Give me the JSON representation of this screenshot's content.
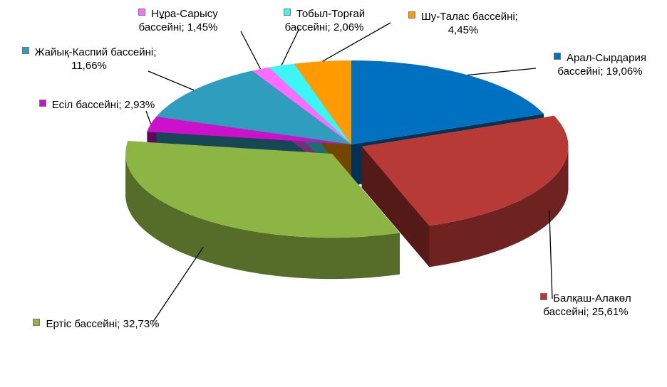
{
  "chart_data": {
    "type": "pie3d",
    "categories": [
      "Арал-Сырдария бассейні;",
      "Балқаш-Алакөл бассейні;",
      "Ертіс бассейні;",
      "Есіл бассейні;",
      "Жайық-Каспий бассейні;",
      "Нұра-Сарысу бассейні;",
      "Тобыл-Торғай бассейні;",
      "Шу-Талас бассейні;"
    ],
    "values": [
      19.06,
      25.61,
      32.73,
      2.93,
      11.66,
      1.45,
      2.06,
      4.45
    ],
    "value_labels": [
      "19,06%",
      "25,61%",
      "32,73%",
      "2,93%",
      "11,66%",
      "1,45%",
      "2,06%",
      "4,45%"
    ],
    "colors": [
      "#0070c0",
      "#b83a36",
      "#8db543",
      "#cc10cc",
      "#2f9dbd",
      "#ff6cff",
      "#3cf6f6",
      "#ff9a00"
    ]
  }
}
